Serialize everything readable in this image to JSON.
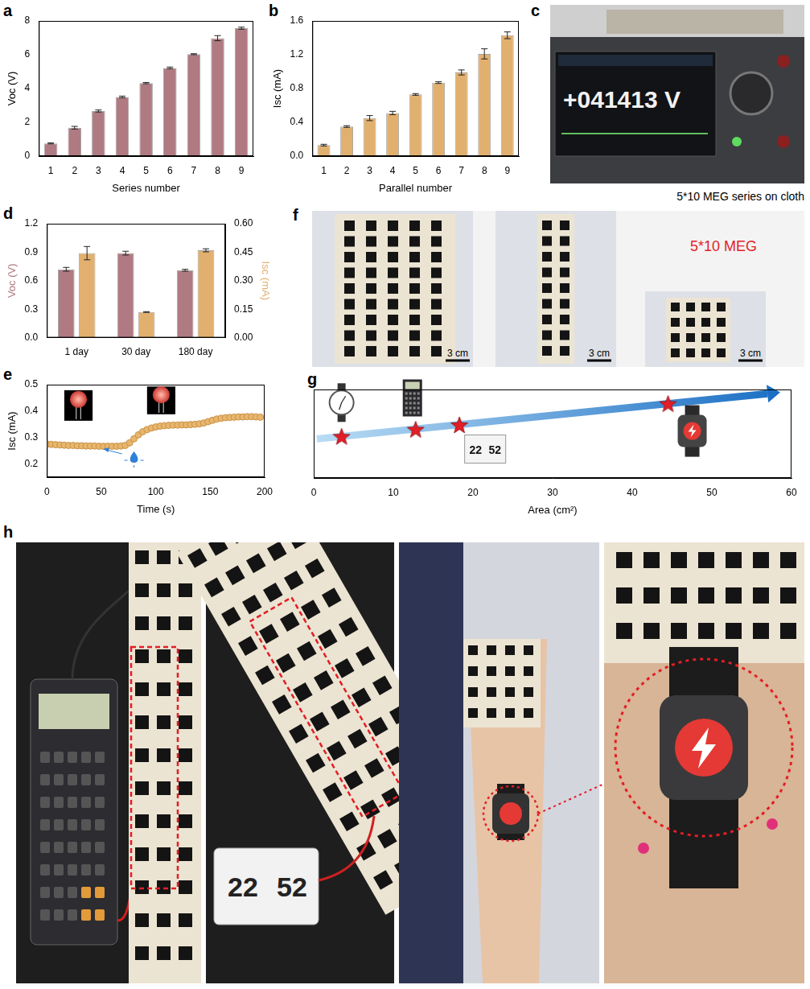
{
  "chart_data": [
    {
      "panel": "a",
      "type": "bar",
      "categories": [
        "1",
        "2",
        "3",
        "4",
        "5",
        "6",
        "7",
        "8",
        "9"
      ],
      "values": [
        0.75,
        1.68,
        2.67,
        3.5,
        4.32,
        5.22,
        6.03,
        6.98,
        7.57
      ],
      "errors": [
        0.03,
        0.08,
        0.06,
        0.05,
        0.04,
        0.05,
        0.03,
        0.15,
        0.06
      ],
      "color": "#b07a82",
      "x_label": "Series number",
      "y_label": "Voc (V)",
      "ylim": [
        0,
        8
      ],
      "yticks": [
        0,
        2,
        4,
        6,
        8
      ],
      "grid": false
    },
    {
      "panel": "b",
      "type": "bar",
      "categories": [
        "1",
        "2",
        "3",
        "4",
        "5",
        "6",
        "7",
        "8",
        "9"
      ],
      "values": [
        0.13,
        0.35,
        0.45,
        0.51,
        0.73,
        0.87,
        0.99,
        1.21,
        1.43
      ],
      "errors": [
        0.01,
        0.01,
        0.03,
        0.02,
        0.01,
        0.01,
        0.03,
        0.06,
        0.04
      ],
      "color": "#e2b06e",
      "x_label": "Parallel number",
      "y_label": "Isc (mA)",
      "ylim": [
        0,
        1.6
      ],
      "yticks": [
        {
          "value": 0,
          "label": "0.0"
        },
        0.4,
        0.8,
        1.2,
        1.6
      ],
      "grid": false
    },
    {
      "panel": "d",
      "type": "bar",
      "categories": [
        "1 day",
        "30 day",
        "180 day"
      ],
      "series": [
        {
          "name": "Voc (V)",
          "color": "#b07a82",
          "values": [
            0.72,
            0.89,
            0.71
          ],
          "errors": [
            0.02,
            0.02,
            0.01
          ]
        },
        {
          "name": "Isc (mA)",
          "color": "#e2b06e",
          "values": [
            0.445,
            0.135,
            0.46
          ],
          "errors": [
            0.035,
            0.002,
            0.008
          ],
          "axis": "y2"
        }
      ],
      "ylim": [
        0,
        1.2
      ],
      "yticks": [
        {
          "value": 0,
          "label": "0.0"
        },
        0.3,
        0.6,
        0.9,
        1.2
      ],
      "y2lim": [
        0,
        0.6
      ],
      "y2ticks": [
        {
          "value": 0,
          "label": "0.00"
        },
        0.15,
        {
          "value": 0.3,
          "label": "0.30"
        },
        0.45,
        {
          "value": 0.6,
          "label": "0.60"
        }
      ],
      "grid": false
    },
    {
      "panel": "e",
      "type": "line",
      "x": [
        0,
        4,
        8,
        12,
        16,
        20,
        24,
        28,
        32,
        36,
        40,
        44,
        48,
        52,
        56,
        60,
        64,
        68,
        72,
        76,
        80,
        84,
        88,
        92,
        96,
        100,
        104,
        108,
        112,
        116,
        120,
        124,
        128,
        132,
        136,
        140,
        144,
        148,
        152,
        156,
        160,
        164,
        168,
        172,
        176,
        180,
        184,
        188,
        192,
        196
      ],
      "values": [
        0.275,
        0.274,
        0.273,
        0.272,
        0.271,
        0.27,
        0.27,
        0.269,
        0.269,
        0.268,
        0.268,
        0.268,
        0.267,
        0.267,
        0.267,
        0.267,
        0.267,
        0.268,
        0.27,
        0.28,
        0.295,
        0.31,
        0.322,
        0.33,
        0.336,
        0.34,
        0.343,
        0.345,
        0.346,
        0.347,
        0.347,
        0.348,
        0.348,
        0.349,
        0.35,
        0.352,
        0.355,
        0.36,
        0.365,
        0.37,
        0.373,
        0.375,
        0.376,
        0.377,
        0.378,
        0.378,
        0.379,
        0.379,
        0.378,
        0.377
      ],
      "color": "#e8b66c",
      "marker": "circle",
      "x_label": "Time (s)",
      "y_label": "Isc (mA)",
      "xlim": [
        0,
        200
      ],
      "xticks": [
        0,
        50,
        100,
        150,
        200
      ],
      "ylim": [
        0.15,
        0.5
      ],
      "yticks": [
        0.2,
        0.3,
        0.4,
        0.5
      ],
      "grid": false
    },
    {
      "panel": "g",
      "type": "scatter",
      "x": [
        3.5,
        12.8,
        18.3,
        44.5
      ],
      "values": [
        4.7,
        5.5,
        6.0,
        8.4
      ],
      "color": "#e31e26",
      "marker": "star",
      "x_label": "Area (cm²)",
      "xlim": [
        0,
        60
      ],
      "xticks": [
        0,
        10,
        20,
        30,
        40,
        50,
        60
      ],
      "ylim": [
        0,
        10
      ],
      "tick_labels": "x",
      "grid": false
    }
  ],
  "photos": {
    "c": {
      "panel": "c",
      "display": "+041413 V",
      "caption": "5*10 MEG series on cloth"
    },
    "f": {
      "panel": "f",
      "label": "5*10 MEG",
      "scale_bars": [
        "3 cm",
        "3 cm",
        "3 cm"
      ]
    },
    "h": {
      "panel": "h",
      "display": [
        "22",
        "52"
      ]
    }
  }
}
